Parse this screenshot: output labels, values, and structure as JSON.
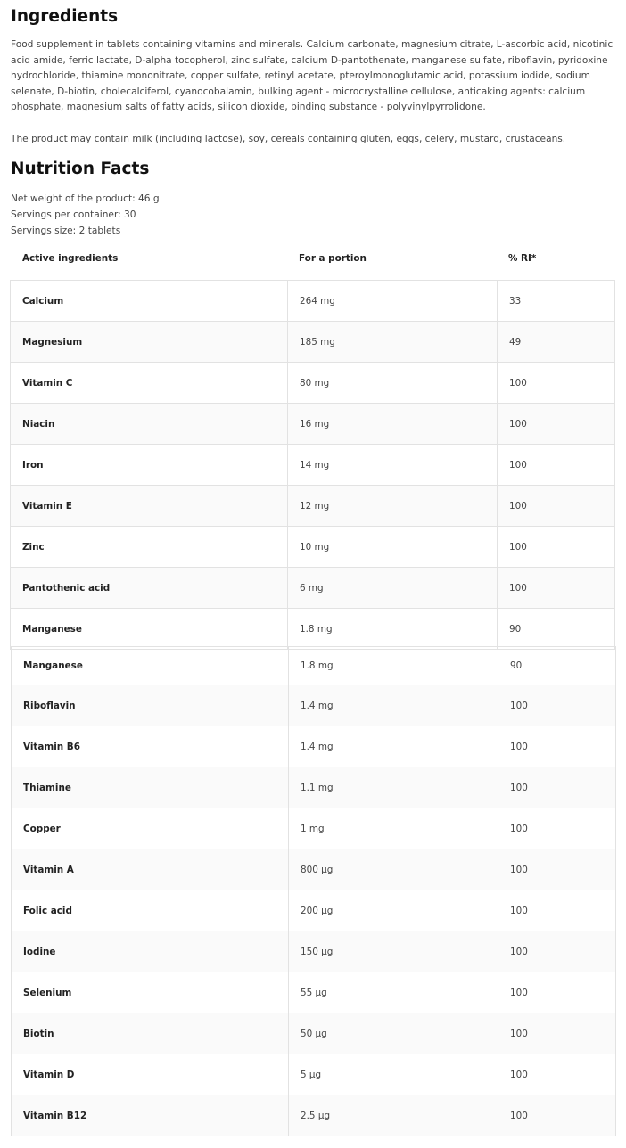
{
  "ingredients": {
    "title": "Ingredients",
    "text": "Food supplement in tablets containing vitamins and minerals. Calcium carbonate, magnesium citrate, L-ascorbic acid, nicotinic acid amide, ferric lactate, D-alpha tocopherol, zinc sulfate, calcium D-pantothenate, manganese sulfate, riboflavin, pyridoxine hydrochloride, thiamine mononitrate, copper sulfate, retinyl acetate, pteroylmonoglutamic acid, potassium iodide, sodium selenate, D-biotin, cholecalciferol, cyanocobalamin, bulking agent - microcrystalline cellulose, anticaking agents: calcium phosphate, magnesium salts of fatty acids, silicon dioxide, binding substance - polyvinylpyrrolidone.",
    "allergens": "The product may contain milk (including lactose), soy, cereals containing gluten, eggs, celery, mustard, crustaceans."
  },
  "nutrition": {
    "title": "Nutrition Facts",
    "net_weight": "Net weight of the product: 46 g",
    "servings": "Servings per container: 30",
    "serving_size": "Servings size: 2 tablets",
    "headers": [
      "Active ingredients",
      "For a portion",
      "% RI*"
    ],
    "table1": [
      [
        "Calcium",
        "264 mg",
        "33"
      ],
      [
        "Magnesium",
        "185 mg",
        "49"
      ],
      [
        "Vitamin C",
        "80 mg",
        "100"
      ],
      [
        "Niacin",
        "16 mg",
        "100"
      ],
      [
        "Iron",
        "14 mg",
        "100"
      ],
      [
        "Vitamin E",
        "12 mg",
        "100"
      ],
      [
        "Zinc",
        "10 mg",
        "100"
      ],
      [
        "Pantothenic acid",
        "6 mg",
        "100"
      ],
      [
        "Manganese",
        "1.8 mg",
        "90"
      ]
    ],
    "table2": [
      [
        "Manganese",
        "1.8 mg",
        "90"
      ],
      [
        "Riboflavin",
        "1.4 mg",
        "100"
      ],
      [
        "Vitamin B6",
        "1.4 mg",
        "100"
      ],
      [
        "Thiamine",
        "1.1 mg",
        "100"
      ],
      [
        "Copper",
        "1 mg",
        "100"
      ],
      [
        "Vitamin A",
        "800 µg",
        "100"
      ],
      [
        "Folic acid",
        "200 µg",
        "100"
      ],
      [
        "Iodine",
        "150 µg",
        "100"
      ],
      [
        "Selenium",
        "55 µg",
        "100"
      ],
      [
        "Biotin",
        "50 µg",
        "100"
      ],
      [
        "Vitamin D",
        "5 µg",
        "100"
      ],
      [
        "Vitamin B12",
        "2.5 µg",
        "100"
      ]
    ]
  }
}
